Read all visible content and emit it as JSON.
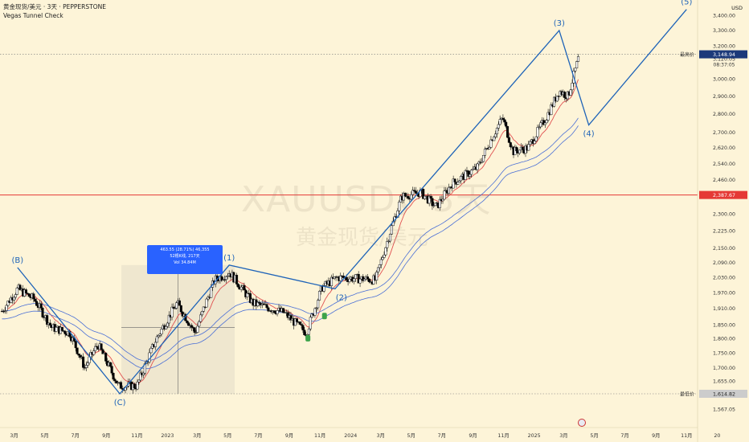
{
  "header": {
    "title": "黄金现货/美元 · 3天 · PEPPERSTONE",
    "indicator": "Vegas Tunnel Check",
    "currency": "USD"
  },
  "watermark": {
    "symbol": "XAUUSD，3天",
    "name": "黄金现货/美元"
  },
  "colors": {
    "background": "#fdf4d8",
    "wave_line": "#1e63b8",
    "up_candle": "#ffffff",
    "down_candle": "#000000",
    "ema_fast": "#e05050",
    "tunnel": "#4a6fd6",
    "horizontal_line": "#e53935",
    "tooltip": "#2962ff"
  },
  "tooltip": {
    "line1": "463.55 (28.71%) 46,355",
    "line2": "52根K线, 217天",
    "line3": "Vol 34.84M"
  },
  "price_labels": {
    "high_label": "最高价",
    "high_value": "3,148.94",
    "last_value": "3,120.05",
    "countdown": "08:37:05",
    "line_value": "2,387.67",
    "low_label": "最低价",
    "low_value": "1,614.82"
  },
  "chart_data": {
    "type": "candlestick",
    "title": "黄金现货/美元 · 3天 · PEPPERSTONE",
    "ylim": [
      1540,
      3460
    ],
    "y_ticks": [
      1567.05,
      1614.82,
      1655,
      1700,
      1750,
      1800,
      1850,
      1910,
      1970,
      2030,
      2090,
      2150,
      2225,
      2300,
      2387.67,
      2460,
      2540,
      2620,
      2700,
      2800,
      2900,
      3000,
      3120.05,
      3148.94,
      3200,
      3300,
      3400
    ],
    "y_tick_labels": [
      "1,567.05",
      "1,614.82",
      "1,655.00",
      "1,700.00",
      "1,750.00",
      "1,800.00",
      "1,850.00",
      "1,910.00",
      "1,970.00",
      "2,030.00",
      "2,090.00",
      "2,150.00",
      "2,225.00",
      "2,300.00",
      "2,387.67",
      "2,460.00",
      "2,540.00",
      "2,620.00",
      "2,700.00",
      "2,800.00",
      "2,900.00",
      "3,000.00",
      "3,120.05",
      "3,148.94",
      "3,200.00",
      "3,300.00",
      "3,400.00"
    ],
    "x_ticks": [
      "2022-03",
      "2022-05",
      "2022-07",
      "2022-09",
      "2022-11",
      "2023-01",
      "2023-03",
      "2023-05",
      "2023-07",
      "2023-09",
      "2023-11",
      "2024-01",
      "2024-03",
      "2024-05",
      "2024-07",
      "2024-09",
      "2024-11",
      "2025-01",
      "2025-03",
      "2025-05",
      "2025-07",
      "2025-09",
      "2025-11",
      "2026-01"
    ],
    "x_tick_labels": [
      "3月",
      "5月",
      "7月",
      "9月",
      "11月",
      "2023",
      "3月",
      "5月",
      "7月",
      "9月",
      "11月",
      "2024",
      "3月",
      "5月",
      "7月",
      "9月",
      "11月",
      "2025",
      "3月",
      "5月",
      "7月",
      "9月",
      "11月",
      "20"
    ],
    "x_range": [
      "2022-02-01",
      "2026-01-10"
    ],
    "horizontal_lines": [
      {
        "value": 2387.67,
        "style": "solid red"
      },
      {
        "value": 3148.94,
        "style": "dotted"
      },
      {
        "value": 1614.82,
        "style": "dotted"
      }
    ],
    "close_series": [
      {
        "date": "2022-02-05",
        "close": 1900
      },
      {
        "date": "2022-03-08",
        "close": 1985
      },
      {
        "date": "2022-04-10",
        "close": 1945
      },
      {
        "date": "2022-05-15",
        "close": 1840
      },
      {
        "date": "2022-06-20",
        "close": 1820
      },
      {
        "date": "2022-07-20",
        "close": 1700
      },
      {
        "date": "2022-08-15",
        "close": 1780
      },
      {
        "date": "2022-09-25",
        "close": 1640
      },
      {
        "date": "2022-11-01",
        "close": 1640
      },
      {
        "date": "2022-12-10",
        "close": 1800
      },
      {
        "date": "2023-01-20",
        "close": 1930
      },
      {
        "date": "2023-02-25",
        "close": 1820
      },
      {
        "date": "2023-04-05",
        "close": 2020
      },
      {
        "date": "2023-05-05",
        "close": 2050
      },
      {
        "date": "2023-06-20",
        "close": 1930
      },
      {
        "date": "2023-08-20",
        "close": 1895
      },
      {
        "date": "2023-10-05",
        "close": 1820
      },
      {
        "date": "2023-11-05",
        "close": 1990
      },
      {
        "date": "2023-12-05",
        "close": 2030
      },
      {
        "date": "2024-01-20",
        "close": 2025
      },
      {
        "date": "2024-02-20",
        "close": 2020
      },
      {
        "date": "2024-04-12",
        "close": 2380
      },
      {
        "date": "2024-05-20",
        "close": 2400
      },
      {
        "date": "2024-06-20",
        "close": 2330
      },
      {
        "date": "2024-07-20",
        "close": 2440
      },
      {
        "date": "2024-09-10",
        "close": 2520
      },
      {
        "date": "2024-10-30",
        "close": 2780
      },
      {
        "date": "2024-11-20",
        "close": 2600
      },
      {
        "date": "2024-12-20",
        "close": 2620
      },
      {
        "date": "2025-01-25",
        "close": 2780
      },
      {
        "date": "2025-02-20",
        "close": 2930
      },
      {
        "date": "2025-03-10",
        "close": 2900
      },
      {
        "date": "2025-03-30",
        "close": 3120
      }
    ],
    "wave_path": [
      {
        "label": "(B)",
        "date": "2022-03-08",
        "value": 2070
      },
      {
        "label": "(C)",
        "date": "2022-09-28",
        "value": 1614.82
      },
      {
        "label": "(1)",
        "date": "2023-05-04",
        "value": 2080
      },
      {
        "label": "(2)",
        "date": "2023-12-01",
        "value": 1985
      },
      {
        "label": "(3)",
        "date": "2025-02-20",
        "value": 3300
      },
      {
        "label": "(4)",
        "date": "2025-04-20",
        "value": 2740
      },
      {
        "label": "(5)",
        "date": "2025-11-01",
        "value": 3440
      }
    ],
    "grid": false,
    "legend": "none"
  }
}
